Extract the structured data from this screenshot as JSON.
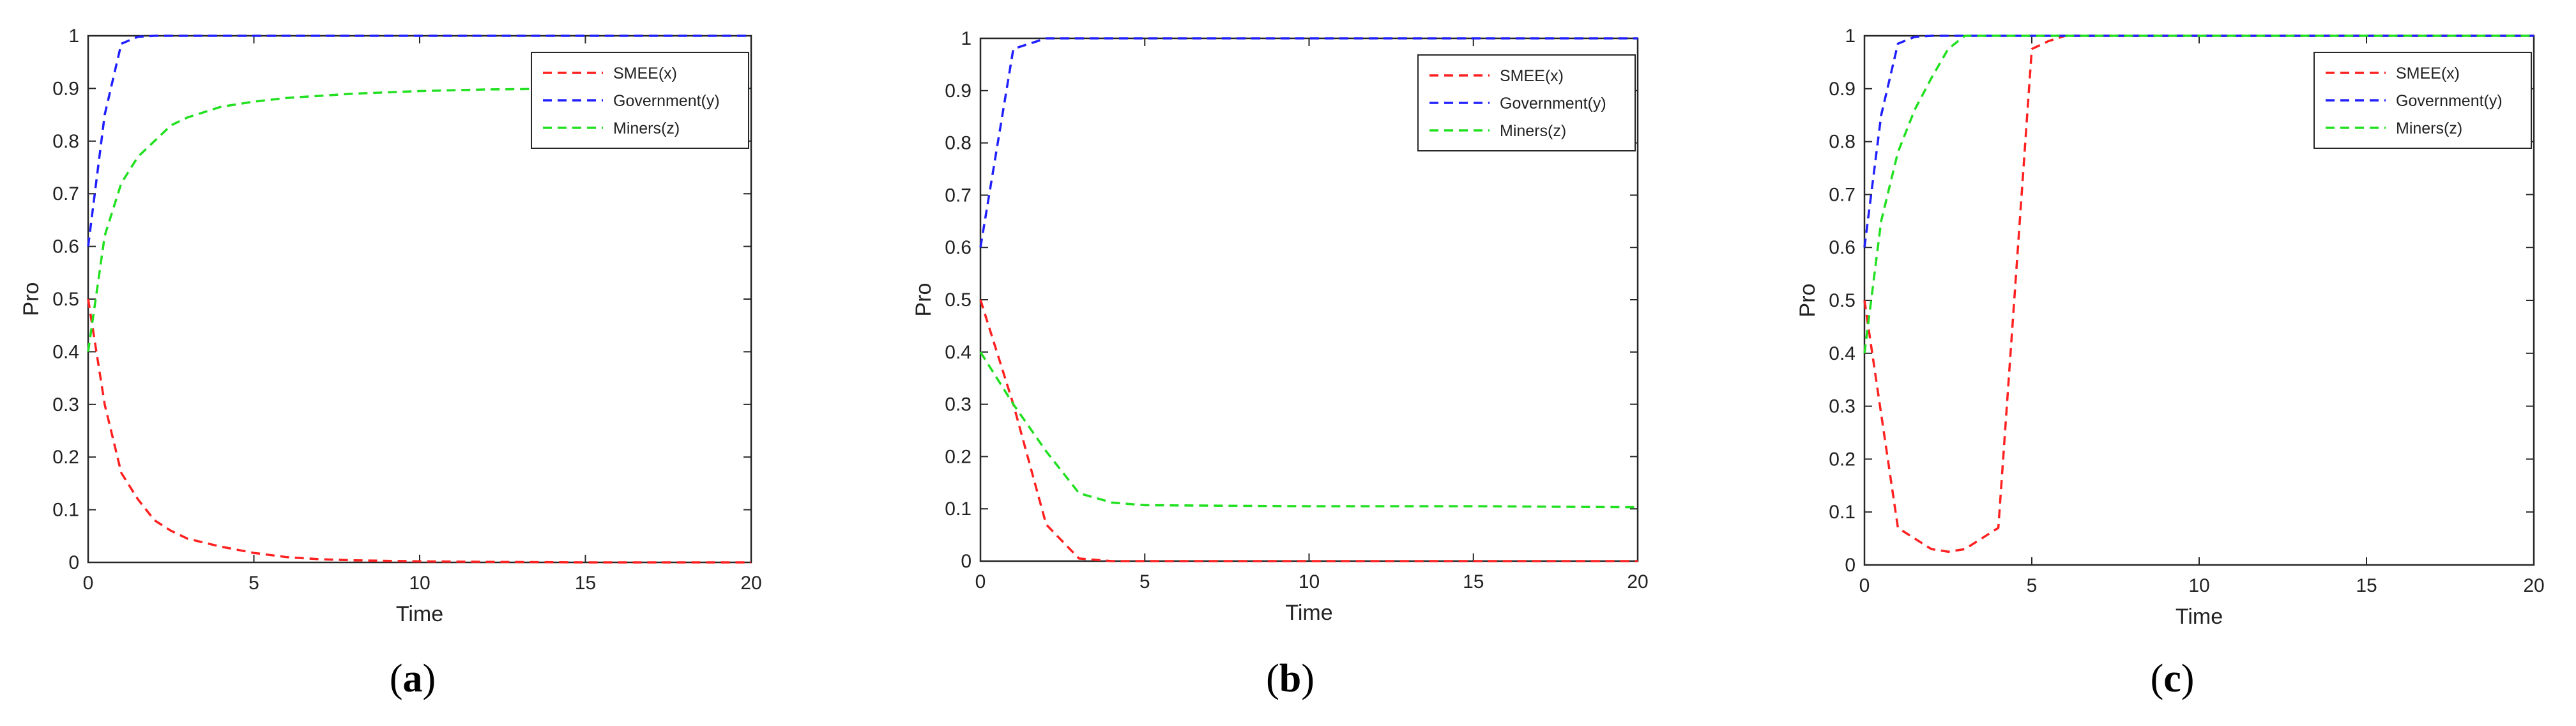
{
  "chart_data": [
    {
      "type": "line",
      "panel_label": "(a)",
      "xlabel": "Time",
      "ylabel": "Pro",
      "xlim": [
        0,
        20
      ],
      "ylim": [
        0,
        1
      ],
      "xticks": [
        0,
        5,
        10,
        15,
        20
      ],
      "yticks": [
        0,
        0.1,
        0.2,
        0.3,
        0.4,
        0.5,
        0.6,
        0.7,
        0.8,
        0.9,
        1
      ],
      "legend_position": "top-right",
      "line_style": "dashed",
      "series": [
        {
          "name": "SMEE(x)",
          "color": "#ff2020",
          "x": [
            0,
            0.5,
            1,
            1.5,
            2,
            2.5,
            3,
            4,
            5,
            6,
            7,
            8,
            10,
            12,
            15,
            20
          ],
          "y": [
            0.5,
            0.3,
            0.17,
            0.12,
            0.08,
            0.06,
            0.045,
            0.03,
            0.018,
            0.01,
            0.006,
            0.004,
            0.002,
            0.001,
            0,
            0
          ]
        },
        {
          "name": "Government(y)",
          "color": "#2020ff",
          "x": [
            0,
            0.5,
            1,
            1.5,
            2,
            5,
            10,
            15,
            20
          ],
          "y": [
            0.6,
            0.85,
            0.985,
            0.998,
            1,
            1,
            1,
            1,
            1
          ]
        },
        {
          "name": "Miners(z)",
          "color": "#20e020",
          "x": [
            0,
            0.5,
            1,
            1.5,
            2,
            2.5,
            3,
            4,
            5,
            6,
            8,
            10,
            12,
            15,
            20
          ],
          "y": [
            0.4,
            0.62,
            0.72,
            0.77,
            0.8,
            0.83,
            0.845,
            0.865,
            0.875,
            0.882,
            0.89,
            0.895,
            0.898,
            0.9,
            0.9
          ]
        }
      ]
    },
    {
      "type": "line",
      "panel_label": "(b)",
      "xlabel": "Time",
      "ylabel": "Pro",
      "xlim": [
        0,
        20
      ],
      "ylim": [
        0,
        1
      ],
      "xticks": [
        0,
        5,
        10,
        15,
        20
      ],
      "yticks": [
        0,
        0.1,
        0.2,
        0.3,
        0.4,
        0.5,
        0.6,
        0.7,
        0.8,
        0.9,
        1
      ],
      "legend_position": "top-right",
      "line_style": "dashed",
      "series": [
        {
          "name": "SMEE(x)",
          "color": "#ff2020",
          "x": [
            0,
            1,
            2,
            3,
            4,
            5,
            10,
            15,
            20
          ],
          "y": [
            0.5,
            0.3,
            0.07,
            0.005,
            0,
            0,
            0,
            0,
            0
          ]
        },
        {
          "name": "Government(y)",
          "color": "#2020ff",
          "x": [
            0,
            1,
            2,
            5,
            10,
            15,
            20
          ],
          "y": [
            0.6,
            0.98,
            1,
            1,
            1,
            1,
            1
          ]
        },
        {
          "name": "Miners(z)",
          "color": "#20e020",
          "x": [
            0,
            1,
            2,
            3,
            4,
            5,
            10,
            15,
            20
          ],
          "y": [
            0.4,
            0.3,
            0.21,
            0.13,
            0.112,
            0.107,
            0.105,
            0.105,
            0.103
          ]
        }
      ]
    },
    {
      "type": "line",
      "panel_label": "(c)",
      "xlabel": "Time",
      "ylabel": "Pro",
      "xlim": [
        0,
        20
      ],
      "ylim": [
        0,
        1
      ],
      "xticks": [
        0,
        5,
        10,
        15,
        20
      ],
      "yticks": [
        0,
        0.1,
        0.2,
        0.3,
        0.4,
        0.5,
        0.6,
        0.7,
        0.8,
        0.9,
        1
      ],
      "legend_position": "top-right",
      "line_style": "dashed",
      "series": [
        {
          "name": "SMEE(x)",
          "color": "#ff2020",
          "x": [
            0,
            1,
            2,
            2.5,
            3,
            4,
            5,
            5.5,
            6,
            10,
            15,
            20
          ],
          "y": [
            0.5,
            0.07,
            0.03,
            0.025,
            0.03,
            0.07,
            0.975,
            0.99,
            1,
            1,
            1,
            1
          ]
        },
        {
          "name": "Government(y)",
          "color": "#2020ff",
          "x": [
            0,
            0.5,
            1,
            1.5,
            2,
            5,
            10,
            15,
            20
          ],
          "y": [
            0.6,
            0.85,
            0.985,
            0.998,
            1,
            1,
            1,
            1,
            1
          ]
        },
        {
          "name": "Miners(z)",
          "color": "#20e020",
          "x": [
            0,
            0.5,
            1,
            1.5,
            2,
            2.5,
            3,
            5,
            10,
            15,
            20
          ],
          "y": [
            0.4,
            0.65,
            0.78,
            0.86,
            0.92,
            0.975,
            1,
            1,
            1,
            1,
            1
          ]
        }
      ]
    }
  ]
}
